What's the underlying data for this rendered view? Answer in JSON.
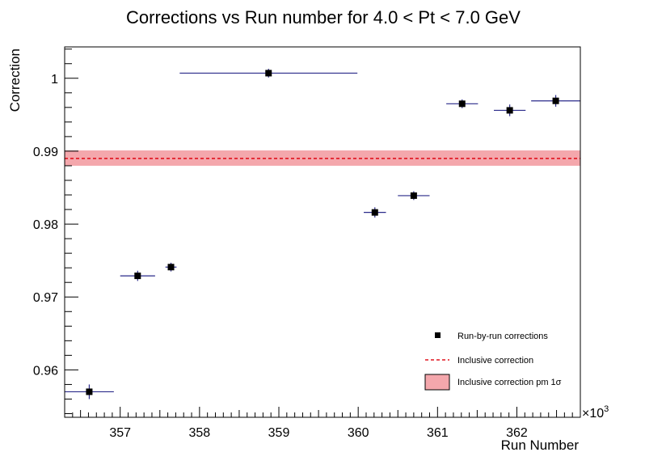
{
  "chart_data": {
    "type": "scatter",
    "title": "Corrections vs Run number for 4.0 < Pt < 7.0 GeV",
    "xlabel": "Run Number",
    "ylabel": "Correction",
    "x_multiplier_label": "×10",
    "x_multiplier_exp": "3",
    "xlim": [
      356.3,
      362.8
    ],
    "ylim": [
      0.9535,
      1.0043
    ],
    "x_ticks": [
      357,
      358,
      359,
      360,
      361,
      362
    ],
    "y_ticks": [
      0.96,
      0.97,
      0.98,
      0.99,
      1
    ],
    "x_tick_labels": [
      "357",
      "358",
      "359",
      "360",
      "361",
      "362"
    ],
    "y_tick_labels": [
      "0.96",
      "0.97",
      "0.98",
      "0.99",
      "1"
    ],
    "grid": false,
    "legend_position": "bottom-right",
    "series": [
      {
        "name": "Run-by-run corrections",
        "marker": "square",
        "marker_color": "#000000",
        "error_color": "#2a2a8a",
        "points": [
          {
            "x": 356.61,
            "y": 0.957,
            "xerr_low": 0.31,
            "xerr_high": 0.31,
            "yerr": 0.001
          },
          {
            "x": 357.22,
            "y": 0.9729,
            "xerr_low": 0.22,
            "xerr_high": 0.22,
            "yerr": 0.0007
          },
          {
            "x": 357.64,
            "y": 0.9741,
            "xerr_low": 0.07,
            "xerr_high": 0.07,
            "yerr": 0.0006
          },
          {
            "x": 358.87,
            "y": 1.0007,
            "xerr_low": 1.12,
            "xerr_high": 1.12,
            "yerr": 0.0006
          },
          {
            "x": 360.21,
            "y": 0.9816,
            "xerr_low": 0.14,
            "xerr_high": 0.14,
            "yerr": 0.0007
          },
          {
            "x": 360.7,
            "y": 0.9839,
            "xerr_low": 0.2,
            "xerr_high": 0.2,
            "yerr": 0.0006
          },
          {
            "x": 361.31,
            "y": 0.9965,
            "xerr_low": 0.2,
            "xerr_high": 0.2,
            "yerr": 0.0006
          },
          {
            "x": 361.91,
            "y": 0.9956,
            "xerr_low": 0.2,
            "xerr_high": 0.2,
            "yerr": 0.0008
          },
          {
            "x": 362.49,
            "y": 0.9969,
            "xerr_low": 0.31,
            "xerr_high": 0.31,
            "yerr": 0.0008
          }
        ]
      },
      {
        "name": "Inclusive correction",
        "line_style": "dashed",
        "line_color": "#e0131e",
        "value": 0.989
      },
      {
        "name": "Inclusive correction pm 1σ",
        "fill_color": "#f4a7ac",
        "band_low": 0.988,
        "band_high": 0.9901
      }
    ]
  }
}
